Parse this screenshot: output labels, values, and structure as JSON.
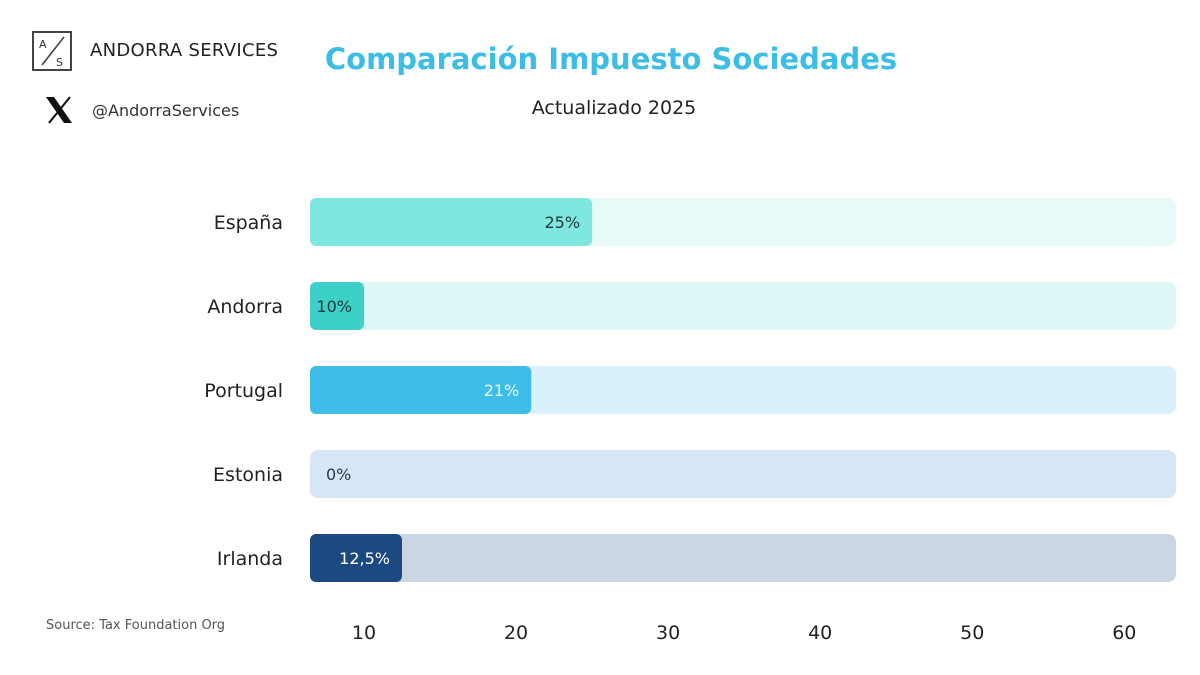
{
  "brand": {
    "name": "ANDORRA SERVICES",
    "logo_letters": [
      "A",
      "S"
    ],
    "handle": "@AndorraServices",
    "social_icon": "x-logo-icon"
  },
  "source": "Source: Tax Foundation Org",
  "chart_data": {
    "type": "bar",
    "orientation": "horizontal",
    "title": "Comparación Impuesto Sociedades",
    "subtitle": "Actualizado 2025",
    "categories": [
      "España",
      "Andorra",
      "Portugal",
      "Estonia",
      "Irlanda"
    ],
    "values": [
      25,
      10,
      21,
      0,
      12.5
    ],
    "data_labels": [
      "25%",
      "10%",
      "21%",
      "0%",
      "12,5%"
    ],
    "x_ticks": [
      "10",
      "20",
      "30",
      "40",
      "50",
      "60"
    ],
    "xlim": [
      6.45,
      63.4
    ],
    "grid": false,
    "legend": "none",
    "colors": {
      "fill": [
        "#7fe6e0",
        "#3dd0c8",
        "#3dbde8",
        "#d6e6f6",
        "#1c4a80"
      ],
      "track": [
        "#e6fafa",
        "#dcf7f5",
        "#d8f1fb",
        "#d6e6f6",
        "#cbd6e3"
      ],
      "label": [
        "#1f3a3a",
        "#1f3a3a",
        "#eaf8ff",
        "#2a3a4a",
        "#ffffff"
      ],
      "title": "#3bbde6"
    }
  }
}
